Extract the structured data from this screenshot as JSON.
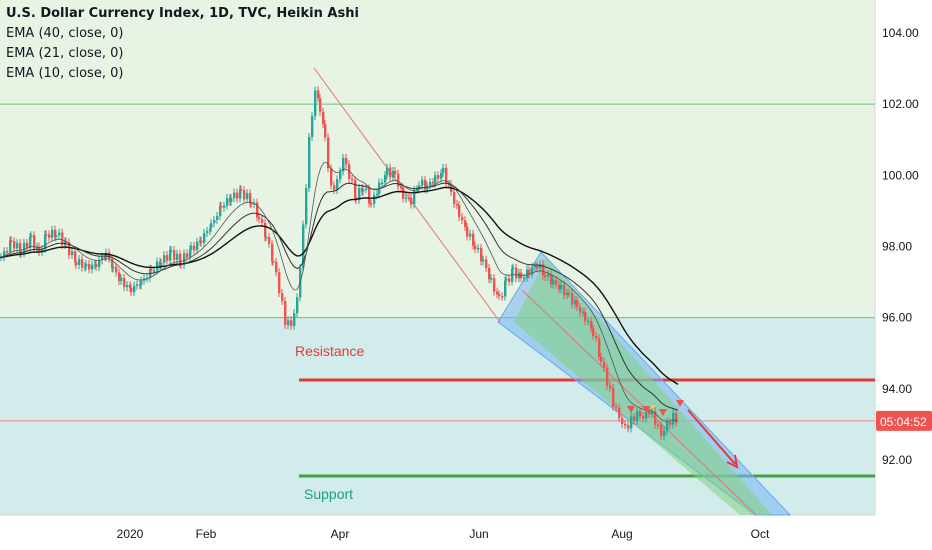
{
  "chart_data": {
    "type": "candlestick",
    "title": "U.S. Dollar Currency Index, 1D, TVC, Heikin Ashi",
    "indicators": [
      "EMA (40, close, 0)",
      "EMA (21, close, 0)",
      "EMA (10, close, 0)"
    ],
    "y_ticks": [
      "104.00",
      "102.00",
      "100.00",
      "98.00",
      "96.00",
      "94.00",
      "92.00"
    ],
    "x_ticks": [
      "2020",
      "Feb",
      "Apr",
      "Jun",
      "Aug",
      "Oct"
    ],
    "ylim": [
      90.0,
      104.5
    ],
    "current_price_label": "05:04:52",
    "annotations": {
      "resistance_label": "Resistance",
      "support_label": "Support",
      "resistance_level": 94.25,
      "support_level": 91.55
    },
    "price_path": [
      [
        0,
        97.7
      ],
      [
        10,
        98.1
      ],
      [
        20,
        97.9
      ],
      [
        30,
        98.2
      ],
      [
        38,
        97.8
      ],
      [
        45,
        98.3
      ],
      [
        55,
        98.4
      ],
      [
        65,
        98.0
      ],
      [
        75,
        97.6
      ],
      [
        85,
        97.4
      ],
      [
        95,
        97.5
      ],
      [
        105,
        97.8
      ],
      [
        112,
        97.4
      ],
      [
        120,
        97.0
      ],
      [
        130,
        96.8
      ],
      [
        140,
        97.0
      ],
      [
        150,
        97.3
      ],
      [
        160,
        97.6
      ],
      [
        170,
        97.8
      ],
      [
        180,
        97.6
      ],
      [
        190,
        97.9
      ],
      [
        200,
        98.2
      ],
      [
        210,
        98.6
      ],
      [
        220,
        99.1
      ],
      [
        230,
        99.4
      ],
      [
        240,
        99.5
      ],
      [
        250,
        99.3
      ],
      [
        258,
        98.8
      ],
      [
        265,
        98.3
      ],
      [
        272,
        97.6
      ],
      [
        278,
        96.8
      ],
      [
        284,
        95.9
      ],
      [
        290,
        95.8
      ],
      [
        296,
        96.5
      ],
      [
        302,
        98.5
      ],
      [
        308,
        101.0
      ],
      [
        314,
        102.4
      ],
      [
        319,
        101.9
      ],
      [
        324,
        101.0
      ],
      [
        330,
        99.6
      ],
      [
        336,
        99.8
      ],
      [
        342,
        100.5
      ],
      [
        348,
        100.0
      ],
      [
        355,
        99.4
      ],
      [
        362,
        99.7
      ],
      [
        370,
        99.2
      ],
      [
        378,
        99.7
      ],
      [
        386,
        100.1
      ],
      [
        394,
        100.0
      ],
      [
        402,
        99.4
      ],
      [
        410,
        99.3
      ],
      [
        418,
        99.8
      ],
      [
        426,
        99.7
      ],
      [
        434,
        99.9
      ],
      [
        442,
        100.1
      ],
      [
        450,
        99.5
      ],
      [
        458,
        98.9
      ],
      [
        466,
        98.4
      ],
      [
        474,
        98.0
      ],
      [
        482,
        97.6
      ],
      [
        490,
        97.0
      ],
      [
        498,
        96.5
      ],
      [
        505,
        97.0
      ],
      [
        512,
        97.3
      ],
      [
        520,
        97.1
      ],
      [
        528,
        97.3
      ],
      [
        536,
        97.5
      ],
      [
        544,
        97.2
      ],
      [
        552,
        97.0
      ],
      [
        560,
        96.8
      ],
      [
        568,
        96.6
      ],
      [
        576,
        96.3
      ],
      [
        584,
        96.0
      ],
      [
        592,
        95.6
      ],
      [
        600,
        94.8
      ],
      [
        606,
        94.2
      ],
      [
        612,
        93.6
      ],
      [
        618,
        93.2
      ],
      [
        624,
        92.9
      ],
      [
        630,
        93.1
      ],
      [
        636,
        93.3
      ],
      [
        642,
        93.2
      ],
      [
        648,
        93.4
      ],
      [
        654,
        93.1
      ],
      [
        660,
        92.7
      ],
      [
        666,
        93.0
      ],
      [
        672,
        93.2
      ],
      [
        678,
        93.1
      ]
    ]
  }
}
